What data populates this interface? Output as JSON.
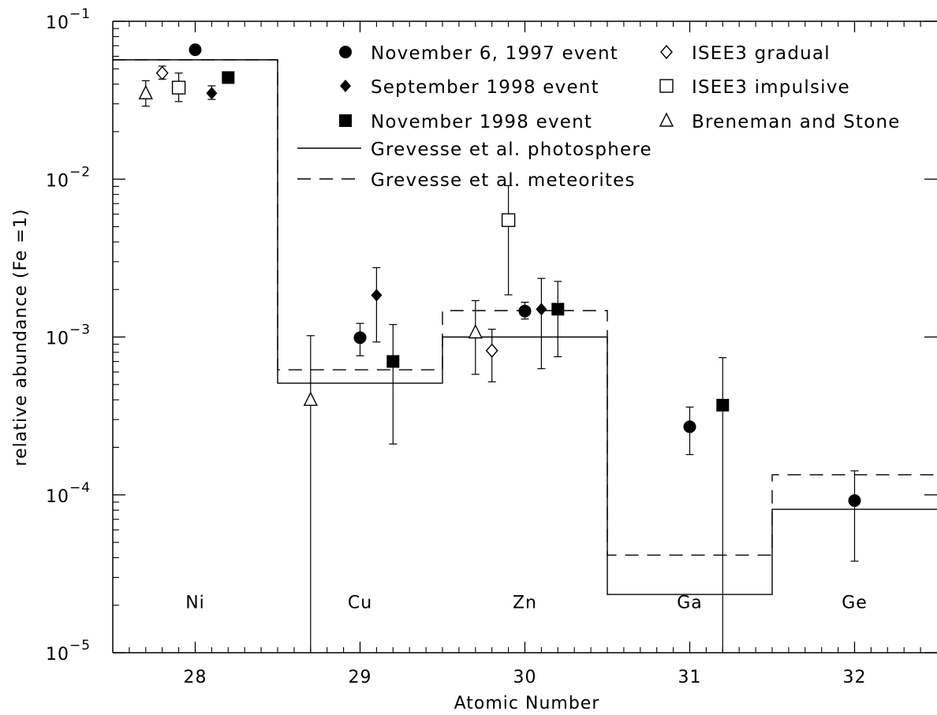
{
  "chart_data": {
    "type": "scatter",
    "xlabel": "Atomic Number",
    "ylabel": "relative abundance (Fe =1)",
    "xlim": [
      27.5,
      32.5
    ],
    "ylim": [
      1e-05,
      0.1
    ],
    "y_scale": "log",
    "x_ticks": [
      28,
      29,
      30,
      31,
      32
    ],
    "x_tick_labels": [
      "28",
      "29",
      "30",
      "31",
      "32"
    ],
    "y_ticks": [
      {
        "value": 1e-05,
        "mantissa": "10",
        "exponent": "−5"
      },
      {
        "value": 0.0001,
        "mantissa": "10",
        "exponent": "−4"
      },
      {
        "value": 0.001,
        "mantissa": "10",
        "exponent": "−3"
      },
      {
        "value": 0.01,
        "mantissa": "10",
        "exponent": "−2"
      },
      {
        "value": 0.1,
        "mantissa": "10",
        "exponent": "−1"
      }
    ],
    "element_labels": [
      {
        "x": 28,
        "text": "Ni"
      },
      {
        "x": 29,
        "text": "Cu"
      },
      {
        "x": 30,
        "text": "Zn"
      },
      {
        "x": 31,
        "text": "Ga"
      },
      {
        "x": 32,
        "text": "Ge"
      }
    ],
    "element_label_y": 2.1e-05,
    "series": [
      {
        "name": "November 6, 1997 event",
        "marker": "filled-circle",
        "points": [
          {
            "x": 28.0,
            "y": 0.066
          },
          {
            "x": 29.0,
            "y": 0.00099,
            "ylo": 0.00076,
            "yhi": 0.00122
          },
          {
            "x": 30.0,
            "y": 0.00146,
            "ylo": 0.0013,
            "yhi": 0.00166
          },
          {
            "x": 31.0,
            "y": 0.00027,
            "ylo": 0.00018,
            "yhi": 0.00036
          },
          {
            "x": 32.0,
            "y": 9.2e-05,
            "ylo": 3.8e-05,
            "yhi": 0.000142
          }
        ]
      },
      {
        "name": "September 1998 event",
        "marker": "filled-diamond",
        "points": [
          {
            "x": 28.1,
            "y": 0.035,
            "ylo": 0.032,
            "yhi": 0.039
          },
          {
            "x": 29.1,
            "y": 0.00184,
            "ylo": 0.00093,
            "yhi": 0.00275
          },
          {
            "x": 30.1,
            "y": 0.0015,
            "ylo": 0.00063,
            "yhi": 0.00235
          }
        ]
      },
      {
        "name": "November 1998 event",
        "marker": "filled-square",
        "points": [
          {
            "x": 28.2,
            "y": 0.044
          },
          {
            "x": 29.2,
            "y": 0.0007,
            "ylo": 0.00021,
            "yhi": 0.0012
          },
          {
            "x": 30.2,
            "y": 0.0015,
            "ylo": 0.00075,
            "yhi": 0.00225
          },
          {
            "x": 31.2,
            "y": 0.00037,
            "ylo": 1e-05,
            "yhi": 0.00074
          }
        ]
      },
      {
        "name": "ISEE3 gradual",
        "marker": "open-diamond",
        "points": [
          {
            "x": 27.8,
            "y": 0.047,
            "ylo": 0.043,
            "yhi": 0.052
          },
          {
            "x": 29.8,
            "y": 0.00082,
            "ylo": 0.00052,
            "yhi": 0.00112
          }
        ]
      },
      {
        "name": "ISEE3 impulsive",
        "marker": "open-square",
        "points": [
          {
            "x": 27.9,
            "y": 0.038,
            "ylo": 0.031,
            "yhi": 0.047
          },
          {
            "x": 29.9,
            "y": 0.0055,
            "ylo": 0.00185,
            "yhi": 0.0091
          }
        ]
      },
      {
        "name": "Breneman and Stone",
        "marker": "open-triangle",
        "points": [
          {
            "x": 27.7,
            "y": 0.035,
            "ylo": 0.029,
            "yhi": 0.042
          },
          {
            "x": 28.7,
            "y": 0.0004,
            "ylo": 1e-05,
            "yhi": 0.00102
          },
          {
            "x": 29.7,
            "y": 0.00107,
            "ylo": 0.00058,
            "yhi": 0.0017
          }
        ]
      }
    ],
    "reference_lines": [
      {
        "name": "Grevesse et al. photosphere",
        "style": "solid",
        "steps": [
          {
            "x0": 27.5,
            "x1": 28.5,
            "y": 0.057
          },
          {
            "x0": 28.5,
            "x1": 29.5,
            "y": 0.00051
          },
          {
            "x0": 29.5,
            "x1": 30.5,
            "y": 0.001
          },
          {
            "x0": 30.5,
            "x1": 31.5,
            "y": 2.34e-05
          },
          {
            "x0": 31.5,
            "x1": 32.5,
            "y": 8.1e-05
          }
        ]
      },
      {
        "name": "Grevesse et al. meteorites",
        "style": "dashed",
        "steps": [
          {
            "x0": 27.5,
            "x1": 28.5,
            "y": 0.057
          },
          {
            "x0": 28.5,
            "x1": 29.5,
            "y": 0.00062
          },
          {
            "x0": 29.5,
            "x1": 30.5,
            "y": 0.00147
          },
          {
            "x0": 30.5,
            "x1": 31.5,
            "y": 4.15e-05
          },
          {
            "x0": 31.5,
            "x1": 32.5,
            "y": 0.000134
          }
        ]
      }
    ],
    "legend_position": "top-right",
    "grid": false
  }
}
